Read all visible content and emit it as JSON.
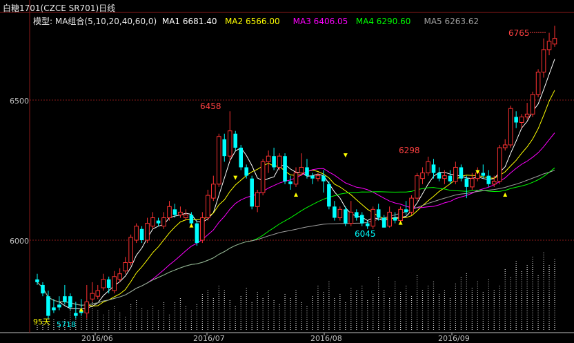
{
  "title": "白糖1701(CZCE SR701)日线",
  "legend": {
    "model_label": "模型: MA组合(5,10,20,40,60,0)",
    "items": [
      {
        "text": "MA1 6681.40",
        "color": "#ffffff"
      },
      {
        "text": "MA2 6566.00",
        "color": "#ffff00"
      },
      {
        "text": "MA3 6406.05",
        "color": "#ff00ff"
      },
      {
        "text": "MA4 6290.60",
        "color": "#00ff00"
      },
      {
        "text": "MA5 6263.62",
        "color": "#a0a0a0"
      }
    ]
  },
  "chart_data": {
    "type": "candlestick",
    "title": "白糖1701(CZCE SR701)日线",
    "y_ticks": [
      6000,
      6500
    ],
    "x_ticks": [
      "2016/06",
      "2016/07",
      "2016/08",
      "2016/09"
    ],
    "ylim": [
      5700,
      6790
    ],
    "annotations": {
      "high_6765": "6765",
      "peak_6458": "6458",
      "peak_6298": "6298",
      "low_6045": "6045",
      "low_5718": "5718",
      "days_95": "95天"
    },
    "colors": {
      "up": "#ff3232",
      "down": "#00ffff",
      "grid": "#8b1a1a",
      "axis": "#c0c0c0"
    },
    "candles": [
      [
        5860,
        5880,
        5850,
        5840
      ],
      [
        5840,
        5850,
        5810,
        5800
      ],
      [
        5800,
        5820,
        5730,
        5720
      ],
      [
        5760,
        5790,
        5750,
        5740
      ],
      [
        5770,
        5800,
        5760,
        5750
      ],
      [
        5800,
        5840,
        5780,
        5770
      ],
      [
        5800,
        5810,
        5760,
        5750
      ],
      [
        5740,
        5780,
        5730,
        5720
      ],
      [
        5750,
        5790,
        5740,
        5730
      ],
      [
        5740,
        5840,
        5780,
        5720
      ],
      [
        5790,
        5850,
        5810,
        5780
      ],
      [
        5800,
        5840,
        5820,
        5790
      ],
      [
        5830,
        5880,
        5860,
        5820
      ],
      [
        5860,
        5870,
        5830,
        5810
      ],
      [
        5820,
        5890,
        5870,
        5810
      ],
      [
        5860,
        5900,
        5880,
        5850
      ],
      [
        5890,
        5940,
        5920,
        5880
      ],
      [
        5920,
        6020,
        6010,
        5910
      ],
      [
        6000,
        6060,
        6050,
        5990
      ],
      [
        6040,
        6050,
        6000,
        5990
      ],
      [
        6000,
        6080,
        6060,
        5990
      ],
      [
        6050,
        6100,
        6080,
        6040
      ],
      [
        6070,
        6080,
        6060,
        6050
      ],
      [
        6050,
        6100,
        6080,
        6040
      ],
      [
        6080,
        6140,
        6120,
        6070
      ],
      [
        6110,
        6130,
        6090,
        6080
      ],
      [
        6090,
        6120,
        6100,
        6080
      ],
      [
        6080,
        6110,
        6090,
        6070
      ],
      [
        6090,
        6100,
        6060,
        6050
      ],
      [
        6060,
        6070,
        5990,
        5980
      ],
      [
        6000,
        6100,
        6080,
        5990
      ],
      [
        6080,
        6180,
        6160,
        6070
      ],
      [
        6150,
        6230,
        6200,
        6140
      ],
      [
        6200,
        6380,
        6370,
        6190
      ],
      [
        6360,
        6380,
        6300,
        6280
      ],
      [
        6300,
        6460,
        6390,
        6280
      ],
      [
        6380,
        6390,
        6330,
        6320
      ],
      [
        6330,
        6340,
        6260,
        6250
      ],
      [
        6260,
        6270,
        6230,
        6220
      ],
      [
        6220,
        6230,
        6120,
        6110
      ],
      [
        6120,
        6180,
        6170,
        6100
      ],
      [
        6170,
        6290,
        6280,
        6160
      ],
      [
        6280,
        6320,
        6300,
        6240
      ],
      [
        6300,
        6330,
        6260,
        6250
      ],
      [
        6260,
        6310,
        6300,
        6250
      ],
      [
        6300,
        6310,
        6210,
        6200
      ],
      [
        6210,
        6230,
        6200,
        6180
      ],
      [
        6200,
        6260,
        6240,
        6190
      ],
      [
        6240,
        6310,
        6260,
        6230
      ],
      [
        6260,
        6290,
        6230,
        6220
      ],
      [
        6230,
        6240,
        6220,
        6200
      ],
      [
        6220,
        6240,
        6230,
        6210
      ],
      [
        6230,
        6250,
        6210,
        6170
      ],
      [
        6200,
        6210,
        6120,
        6110
      ],
      [
        6120,
        6140,
        6080,
        6070
      ],
      [
        6080,
        6120,
        6110,
        6070
      ],
      [
        6110,
        6120,
        6060,
        6050
      ],
      [
        6060,
        6140,
        6100,
        6050
      ],
      [
        6100,
        6110,
        6080,
        6070
      ],
      [
        6090,
        6100,
        6060,
        6050
      ],
      [
        6060,
        6070,
        6050,
        6040
      ],
      [
        6050,
        6120,
        6110,
        6040
      ],
      [
        6110,
        6130,
        6080,
        6070
      ],
      [
        6080,
        6090,
        6045,
        6045
      ],
      [
        6050,
        6120,
        6100,
        6045
      ],
      [
        6080,
        6100,
        6070,
        6060
      ],
      [
        6070,
        6120,
        6110,
        6060
      ],
      [
        6110,
        6140,
        6100,
        6090
      ],
      [
        6100,
        6160,
        6150,
        6090
      ],
      [
        6150,
        6240,
        6230,
        6140
      ],
      [
        6220,
        6260,
        6240,
        6200
      ],
      [
        6240,
        6298,
        6280,
        6230
      ],
      [
        6270,
        6290,
        6240,
        6220
      ],
      [
        6240,
        6260,
        6220,
        6210
      ],
      [
        6220,
        6250,
        6230,
        6200
      ],
      [
        6230,
        6250,
        6210,
        6200
      ],
      [
        6210,
        6280,
        6260,
        6200
      ],
      [
        6260,
        6270,
        6220,
        6210
      ],
      [
        6220,
        6230,
        6190,
        6150
      ],
      [
        6190,
        6240,
        6220,
        6180
      ],
      [
        6220,
        6260,
        6240,
        6210
      ],
      [
        6240,
        6270,
        6230,
        6220
      ],
      [
        6230,
        6250,
        6200,
        6190
      ],
      [
        6200,
        6230,
        6210,
        6190
      ],
      [
        6210,
        6340,
        6330,
        6200
      ],
      [
        6330,
        6360,
        6340,
        6320
      ],
      [
        6340,
        6480,
        6470,
        6330
      ],
      [
        6440,
        6460,
        6420,
        6400
      ],
      [
        6420,
        6450,
        6440,
        6400
      ],
      [
        6440,
        6490,
        6450,
        6430
      ],
      [
        6450,
        6530,
        6520,
        6440
      ],
      [
        6520,
        6610,
        6600,
        6510
      ],
      [
        6600,
        6720,
        6680,
        6580
      ],
      [
        6680,
        6740,
        6710,
        6660
      ],
      [
        6700,
        6765,
        6720,
        6690
      ]
    ]
  }
}
